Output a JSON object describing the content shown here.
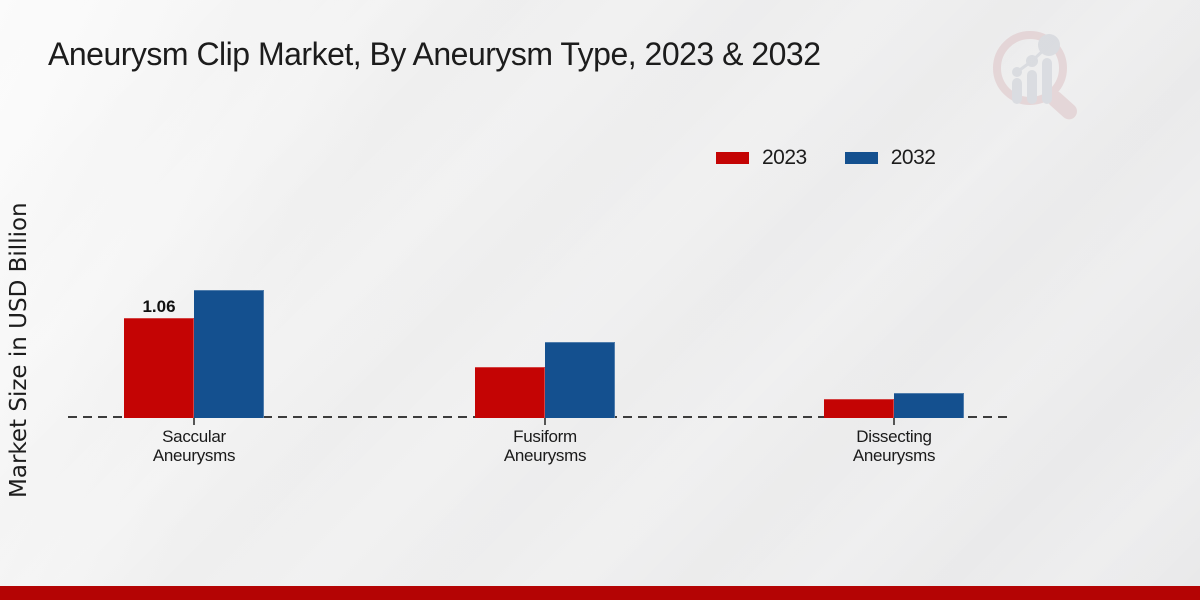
{
  "title": "Aneurysm Clip Market, By Aneurysm Type, 2023 & 2032",
  "y_axis_label": "Market Size in USD Billion",
  "watermark": "market-research-future-logo",
  "colors": {
    "series_2023": "#c40404",
    "series_2032": "#14508f",
    "footer_accent": "#b40404",
    "background": "#ececed",
    "baseline": "#3c3c3c"
  },
  "chart_data": {
    "type": "bar",
    "title": "Aneurysm Clip Market, By Aneurysm Type, 2023 & 2032",
    "xlabel": "",
    "ylabel": "Market Size in USD Billion",
    "categories": [
      "Saccular Aneurysms",
      "Fusiform Aneurysms",
      "Dissecting Aneurysms"
    ],
    "series": [
      {
        "name": "2023",
        "color": "#c40404",
        "values": [
          1.06,
          0.54,
          0.2
        ]
      },
      {
        "name": "2032",
        "color": "#14508f",
        "values": [
          1.36,
          0.81,
          0.27
        ]
      }
    ],
    "bar_labels": [
      [
        "1.06",
        "",
        ""
      ],
      [
        "",
        "",
        ""
      ]
    ],
    "ylim": [
      0,
      1.45
    ],
    "grid": false,
    "y_ticks_visible": false,
    "legend_position": "top-right",
    "baseline_style": "dashed"
  }
}
